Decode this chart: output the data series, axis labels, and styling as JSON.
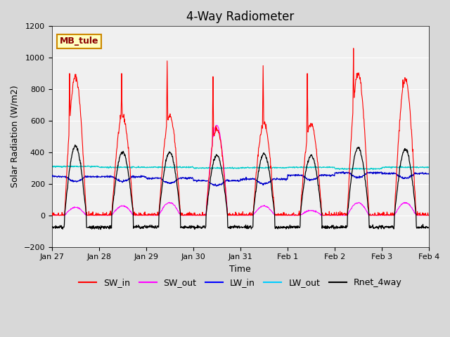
{
  "title": "4-Way Radiometer",
  "xlabel": "Time",
  "ylabel": "Solar Radiation (W/m2)",
  "ylim": [
    -200,
    1200
  ],
  "xlim_days": 8.0,
  "annotation_label": "MB_tule",
  "bg_color": "#e8e8e8",
  "plot_bg_color": "#f0f0f0",
  "legend_entries": [
    "SW_in",
    "SW_out",
    "LW_in",
    "LW_out",
    "Rnet_4way"
  ],
  "legend_colors": [
    "#ff0000",
    "#ff00ff",
    "#0000ff",
    "#00ccff",
    "#000000"
  ],
  "x_tick_labels": [
    "Jan 27",
    "Jan 28",
    "Jan 29",
    "Jan 30",
    "Jan 31",
    "Feb 1",
    "Feb 2",
    "Feb 3",
    "Feb 4"
  ],
  "x_tick_positions": [
    0,
    1,
    2,
    3,
    4,
    5,
    6,
    7,
    8
  ],
  "grid_color": "#ffffff",
  "title_fontsize": 12,
  "label_fontsize": 9,
  "tick_fontsize": 8,
  "legend_fontsize": 9
}
